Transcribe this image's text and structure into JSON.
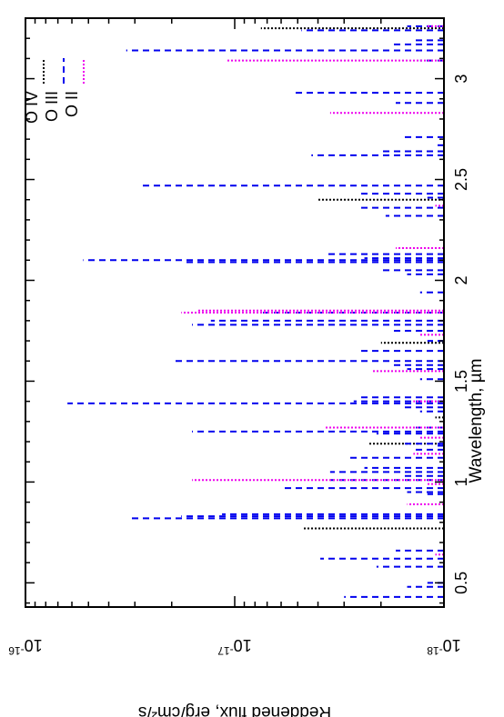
{
  "chart_data": {
    "type": "line",
    "orientation": "rotated 90 degrees counter-clockwise (wavelength axis along the bottom edge, flux axis along the left edge)",
    "xlabel": "Wavelength, µm",
    "ylabel": "Reddened flux, erg/cm²/s",
    "xlim": [
      0.38,
      3.3
    ],
    "ylim": [
      1e-18,
      1e-16
    ],
    "y_scale": "log",
    "x_ticks": [
      {
        "value": 0.5,
        "label": "0.5"
      },
      {
        "value": 1,
        "label": "1"
      },
      {
        "value": 1.5,
        "label": "1.5"
      },
      {
        "value": 2,
        "label": "2"
      },
      {
        "value": 2.5,
        "label": "2.5"
      },
      {
        "value": 3,
        "label": "3"
      }
    ],
    "y_ticks": [
      {
        "value": 1e-18,
        "base": "10",
        "exp": "-18"
      },
      {
        "value": 1e-17,
        "base": "10",
        "exp": "-17"
      },
      {
        "value": 1e-16,
        "base": "10",
        "exp": "-16"
      }
    ],
    "grid": false,
    "legend_position": "top-right",
    "series": [
      {
        "name": "O IV",
        "color": "#000000",
        "dash": "dotted",
        "lines": [
          [
            0.77,
            4.7e-18
          ],
          [
            1.19,
            2.3e-18
          ],
          [
            1.32,
            1.1e-18
          ],
          [
            1.69,
            2e-18
          ],
          [
            2.4,
            4e-18
          ],
          [
            3.25,
            7.5e-18
          ]
        ]
      },
      {
        "name": "O III",
        "color": "#0000ee",
        "dash": "dashed",
        "lines": [
          [
            0.43,
            3e-18
          ],
          [
            0.48,
            1.5e-18
          ],
          [
            0.5,
            1.2e-18
          ],
          [
            0.58,
            2.1e-18
          ],
          [
            0.62,
            3.9e-18
          ],
          [
            0.66,
            1.7e-18
          ],
          [
            0.82,
            3.1e-17
          ],
          [
            0.83,
            1.8e-17
          ],
          [
            0.84,
            1.15e-17
          ],
          [
            0.94,
            1.2e-18
          ],
          [
            0.95,
            1.5e-18
          ],
          [
            0.97,
            6e-18
          ],
          [
            1.01,
            3.5e-18
          ],
          [
            1.03,
            1.6e-18
          ],
          [
            1.05,
            3.5e-18
          ],
          [
            1.07,
            2.4e-18
          ],
          [
            1.12,
            2.9e-18
          ],
          [
            1.16,
            1.4e-18
          ],
          [
            1.18,
            1.1e-18
          ],
          [
            1.19,
            1.6e-18
          ],
          [
            1.24,
            2.1e-18
          ],
          [
            1.25,
            1.6e-17
          ],
          [
            1.27,
            1.4e-18
          ],
          [
            1.35,
            1.3e-18
          ],
          [
            1.37,
            1.6e-18
          ],
          [
            1.39,
            6.3e-17
          ],
          [
            1.4,
            2.7e-18
          ],
          [
            1.42,
            2.5e-18
          ],
          [
            1.51,
            1.3e-18
          ],
          [
            1.56,
            1.5e-18
          ],
          [
            1.58,
            1.8e-18
          ],
          [
            1.6,
            2e-17
          ],
          [
            1.65,
            2.6e-18
          ],
          [
            1.7,
            1.2e-18
          ],
          [
            1.75,
            1.8e-18
          ],
          [
            1.78,
            1.6e-17
          ],
          [
            1.8,
            1.3e-17
          ],
          [
            1.84,
            7.5e-18
          ],
          [
            1.94,
            1.3e-18
          ],
          [
            2.03,
            1.5e-18
          ],
          [
            2.05,
            2e-18
          ],
          [
            2.08,
            1e-18
          ],
          [
            2.09,
            1.7e-17
          ],
          [
            2.1,
            5.3e-17
          ],
          [
            2.11,
            2.4e-18
          ],
          [
            2.13,
            3.7e-18
          ],
          [
            2.32,
            1.9e-18
          ],
          [
            2.36,
            2.5e-18
          ],
          [
            2.41,
            1.2e-18
          ],
          [
            2.43,
            2.5e-18
          ],
          [
            2.47,
            2.8e-17
          ],
          [
            2.62,
            4.3e-18
          ],
          [
            2.64,
            2e-18
          ],
          [
            2.67,
            1.1e-18
          ],
          [
            2.71,
            1.6e-18
          ],
          [
            2.88,
            1.7e-18
          ],
          [
            2.93,
            5.2e-18
          ],
          [
            3.09,
            1.3e-18
          ],
          [
            3.14,
            3.3e-17
          ],
          [
            3.17,
            1.8e-18
          ],
          [
            3.19,
            1.4e-18
          ],
          [
            3.24,
            4.8e-18
          ],
          [
            3.26,
            1.5e-18
          ]
        ]
      },
      {
        "name": "O II",
        "color": "#ee00ee",
        "dash": "dotted",
        "lines": [
          [
            0.64,
            1.1e-18
          ],
          [
            0.89,
            1.5e-18
          ],
          [
            0.99,
            1.2e-18
          ],
          [
            1.01,
            1.6e-17
          ],
          [
            1.14,
            1.4e-18
          ],
          [
            1.22,
            1.3e-18
          ],
          [
            1.27,
            3.7e-18
          ],
          [
            1.4,
            1.4e-18
          ],
          [
            1.55,
            2.2e-18
          ],
          [
            1.73,
            1.3e-18
          ],
          [
            1.84,
            1.8e-17
          ],
          [
            1.85,
            1.5e-17
          ],
          [
            2.16,
            1.7e-18
          ],
          [
            2.37,
            1.1e-18
          ],
          [
            2.83,
            3.5e-18
          ],
          [
            3.09,
            1.1e-17
          ],
          [
            3.26,
            1.2e-18
          ]
        ]
      }
    ]
  }
}
